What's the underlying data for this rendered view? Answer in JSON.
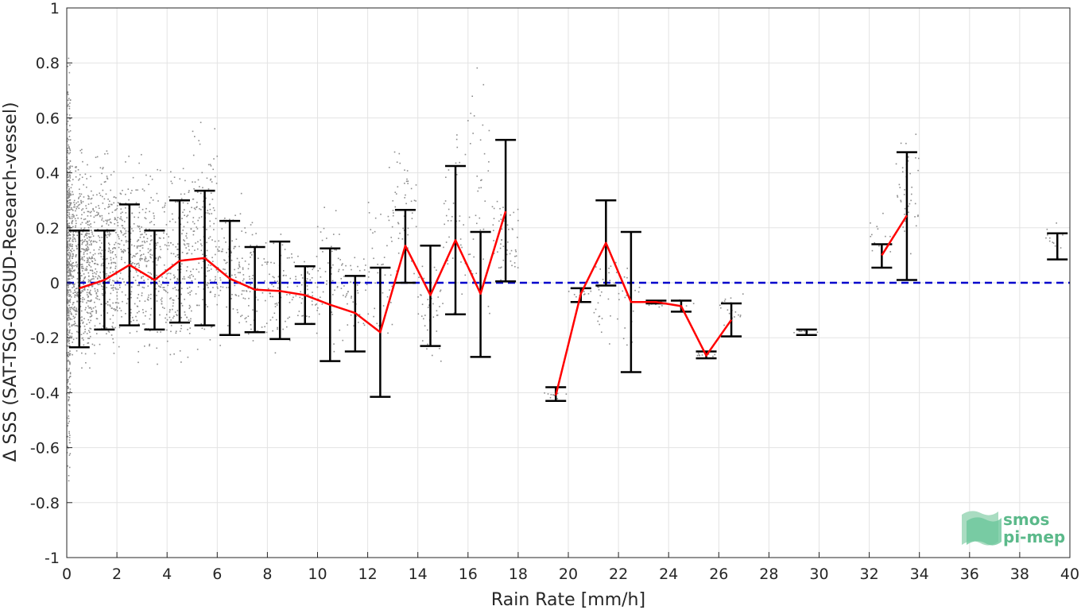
{
  "chart_data": {
    "type": "line",
    "xlabel": "Rain Rate [mm/h]",
    "ylabel": "Δ SSS (SAT-TSG-GOSUD-Research-vessel)",
    "xlim": [
      0,
      40
    ],
    "ylim": [
      -1,
      1
    ],
    "x_ticks": [
      "0",
      "2",
      "4",
      "6",
      "8",
      "10",
      "12",
      "14",
      "16",
      "18",
      "20",
      "22",
      "24",
      "26",
      "28",
      "30",
      "32",
      "34",
      "36",
      "38",
      "40"
    ],
    "y_ticks": [
      "1",
      "0.8",
      "0.6",
      "0.4",
      "0.2",
      "0",
      "-0.2",
      "-0.4",
      "-0.6",
      "-0.8",
      "-1"
    ],
    "grid": true,
    "zero_reference": {
      "value": 0,
      "color": "#0000cc",
      "style": "dashed"
    },
    "series": [
      {
        "kind": "binned-mean-with-std",
        "color": "#ff0000",
        "points": [
          {
            "x": 0.5,
            "mean": -0.02,
            "low": -0.235,
            "high": 0.19
          },
          {
            "x": 1.5,
            "mean": 0.01,
            "low": -0.17,
            "high": 0.19
          },
          {
            "x": 2.5,
            "mean": 0.065,
            "low": -0.155,
            "high": 0.285
          },
          {
            "x": 3.5,
            "mean": 0.01,
            "low": -0.17,
            "high": 0.19
          },
          {
            "x": 4.5,
            "mean": 0.08,
            "low": -0.145,
            "high": 0.3
          },
          {
            "x": 5.5,
            "mean": 0.09,
            "low": -0.155,
            "high": 0.335
          },
          {
            "x": 6.5,
            "mean": 0.015,
            "low": -0.19,
            "high": 0.225
          },
          {
            "x": 7.5,
            "mean": -0.025,
            "low": -0.18,
            "high": 0.13
          },
          {
            "x": 8.5,
            "mean": -0.03,
            "low": -0.205,
            "high": 0.15
          },
          {
            "x": 9.5,
            "mean": -0.045,
            "low": -0.15,
            "high": 0.06
          },
          {
            "x": 10.5,
            "mean": -0.08,
            "low": -0.285,
            "high": 0.125
          },
          {
            "x": 11.5,
            "mean": -0.11,
            "low": -0.25,
            "high": 0.025
          },
          {
            "x": 12.5,
            "mean": -0.18,
            "low": -0.415,
            "high": 0.055
          },
          {
            "x": 13.5,
            "mean": 0.135,
            "low": 0.0,
            "high": 0.265
          },
          {
            "x": 14.5,
            "mean": -0.045,
            "low": -0.23,
            "high": 0.135
          },
          {
            "x": 15.5,
            "mean": 0.155,
            "low": -0.115,
            "high": 0.425
          },
          {
            "x": 16.5,
            "mean": -0.04,
            "low": -0.27,
            "high": 0.185
          },
          {
            "x": 17.5,
            "mean": 0.26,
            "low": 0.005,
            "high": 0.52
          },
          {
            "x": 19.5,
            "mean": -0.41,
            "low": -0.43,
            "high": -0.38,
            "break_before": true
          },
          {
            "x": 20.5,
            "mean": -0.04,
            "low": -0.07,
            "high": -0.02
          },
          {
            "x": 21.5,
            "mean": 0.145,
            "low": -0.01,
            "high": 0.3
          },
          {
            "x": 22.5,
            "mean": -0.07,
            "low": -0.325,
            "high": 0.185
          },
          {
            "x": 23.5,
            "mean": -0.07,
            "low": -0.075,
            "high": -0.065
          },
          {
            "x": 24.5,
            "mean": -0.085,
            "low": -0.105,
            "high": -0.065
          },
          {
            "x": 25.5,
            "mean": -0.265,
            "low": -0.275,
            "high": -0.25
          },
          {
            "x": 26.5,
            "mean": -0.135,
            "low": -0.195,
            "high": -0.075
          },
          {
            "x": 29.5,
            "mean": -0.18,
            "low": -0.19,
            "high": -0.17,
            "break_before": true
          },
          {
            "x": 32.5,
            "mean": 0.1,
            "low": 0.055,
            "high": 0.14,
            "break_before": true
          },
          {
            "x": 33.5,
            "mean": 0.245,
            "low": 0.01,
            "high": 0.475
          },
          {
            "x": 39.5,
            "mean": 0.135,
            "low": 0.085,
            "high": 0.18,
            "break_before": true
          }
        ]
      }
    ],
    "scatter_bins": [
      {
        "x0": 0.0,
        "x1": 0.15,
        "ylo": -0.85,
        "yhi": 1.0,
        "n": 450
      },
      {
        "x0": 0.15,
        "x1": 1.0,
        "ylo": -0.45,
        "yhi": 0.55,
        "n": 500
      },
      {
        "x0": 1.0,
        "x1": 2.0,
        "ylo": -0.4,
        "yhi": 0.6,
        "n": 300
      },
      {
        "x0": 2.0,
        "x1": 3.0,
        "ylo": -0.35,
        "yhi": 0.55,
        "n": 220
      },
      {
        "x0": 3.0,
        "x1": 4.0,
        "ylo": -0.35,
        "yhi": 0.5,
        "n": 180
      },
      {
        "x0": 4.0,
        "x1": 5.0,
        "ylo": -0.4,
        "yhi": 0.55,
        "n": 180
      },
      {
        "x0": 5.0,
        "x1": 6.0,
        "ylo": -0.35,
        "yhi": 0.65,
        "n": 160
      },
      {
        "x0": 6.0,
        "x1": 7.0,
        "ylo": -0.3,
        "yhi": 0.4,
        "n": 90
      },
      {
        "x0": 7.0,
        "x1": 8.0,
        "ylo": -0.3,
        "yhi": 0.3,
        "n": 70
      },
      {
        "x0": 8.0,
        "x1": 9.0,
        "ylo": -0.35,
        "yhi": 0.3,
        "n": 70
      },
      {
        "x0": 9.0,
        "x1": 10.0,
        "ylo": -0.25,
        "yhi": 0.2,
        "n": 50
      },
      {
        "x0": 10.0,
        "x1": 11.0,
        "ylo": -0.3,
        "yhi": 0.4,
        "n": 50
      },
      {
        "x0": 11.0,
        "x1": 12.0,
        "ylo": -0.3,
        "yhi": 0.2,
        "n": 40
      },
      {
        "x0": 12.0,
        "x1": 13.0,
        "ylo": -0.35,
        "yhi": 0.5,
        "n": 40
      },
      {
        "x0": 13.0,
        "x1": 14.0,
        "ylo": -0.1,
        "yhi": 0.6,
        "n": 50
      },
      {
        "x0": 14.0,
        "x1": 15.0,
        "ylo": -0.4,
        "yhi": 0.2,
        "n": 40
      },
      {
        "x0": 15.0,
        "x1": 16.0,
        "ylo": -0.2,
        "yhi": 0.75,
        "n": 40
      },
      {
        "x0": 16.0,
        "x1": 17.0,
        "ylo": -0.3,
        "yhi": 0.9,
        "n": 40
      },
      {
        "x0": 17.0,
        "x1": 18.0,
        "ylo": -0.1,
        "yhi": 0.4,
        "n": 50
      },
      {
        "x0": 19.0,
        "x1": 20.0,
        "ylo": -0.43,
        "yhi": -0.39,
        "n": 10
      },
      {
        "x0": 20.0,
        "x1": 21.0,
        "ylo": -0.07,
        "yhi": -0.02,
        "n": 10
      },
      {
        "x0": 21.0,
        "x1": 22.0,
        "ylo": -0.3,
        "yhi": 0.25,
        "n": 30
      },
      {
        "x0": 22.0,
        "x1": 23.0,
        "ylo": -0.33,
        "yhi": 0.18,
        "n": 20
      },
      {
        "x0": 23.0,
        "x1": 25.0,
        "ylo": -0.1,
        "yhi": -0.06,
        "n": 10
      },
      {
        "x0": 25.0,
        "x1": 26.0,
        "ylo": -0.28,
        "yhi": -0.25,
        "n": 10
      },
      {
        "x0": 26.0,
        "x1": 27.0,
        "ylo": -0.2,
        "yhi": 0.0,
        "n": 20
      },
      {
        "x0": 29.0,
        "x1": 30.0,
        "ylo": -0.19,
        "yhi": -0.17,
        "n": 8
      },
      {
        "x0": 32.0,
        "x1": 33.0,
        "ylo": 0.05,
        "yhi": 0.28,
        "n": 12
      },
      {
        "x0": 33.0,
        "x1": 34.0,
        "ylo": 0.0,
        "yhi": 0.7,
        "n": 40
      },
      {
        "x0": 39.0,
        "x1": 40.0,
        "ylo": 0.08,
        "yhi": 0.25,
        "n": 12
      }
    ]
  },
  "logo": {
    "line1": "smos",
    "line2": "pi-mep"
  }
}
